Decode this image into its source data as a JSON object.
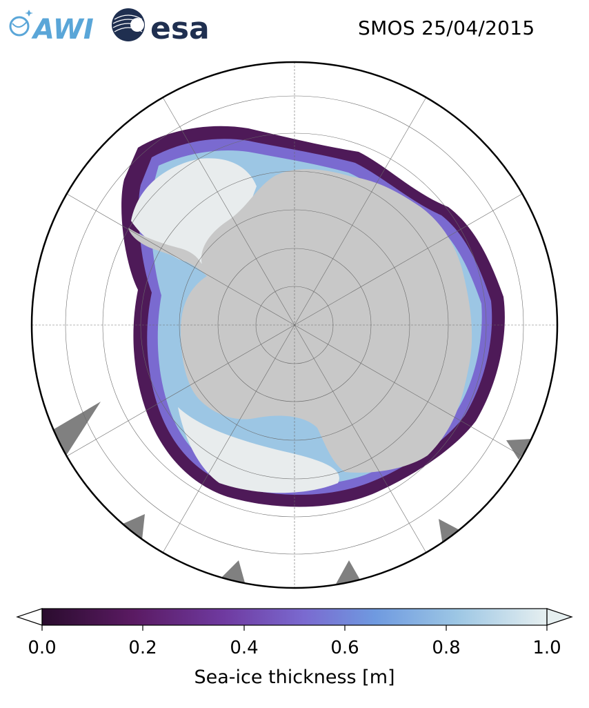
{
  "title": "SMOS 25/04/2015",
  "logos": {
    "awi": "AWI",
    "esa": "esa"
  },
  "colorbar": {
    "label": "Sea-ice thickness [m]",
    "min": 0.0,
    "max": 1.0,
    "ticks": [
      "0.0",
      "0.2",
      "0.4",
      "0.6",
      "0.8",
      "1.0"
    ],
    "extend": "both",
    "colors": [
      "#2a0c2e",
      "#5a1a62",
      "#6f3aa0",
      "#7a6ad0",
      "#6f9ae0",
      "#9cc6e4",
      "#e6eff0"
    ]
  },
  "map": {
    "projection": "south-polar-stereographic",
    "land_color": "#c8c8c8",
    "no_data_color": "#808080",
    "ocean_color": "#ffffff",
    "gridlines": true
  }
}
